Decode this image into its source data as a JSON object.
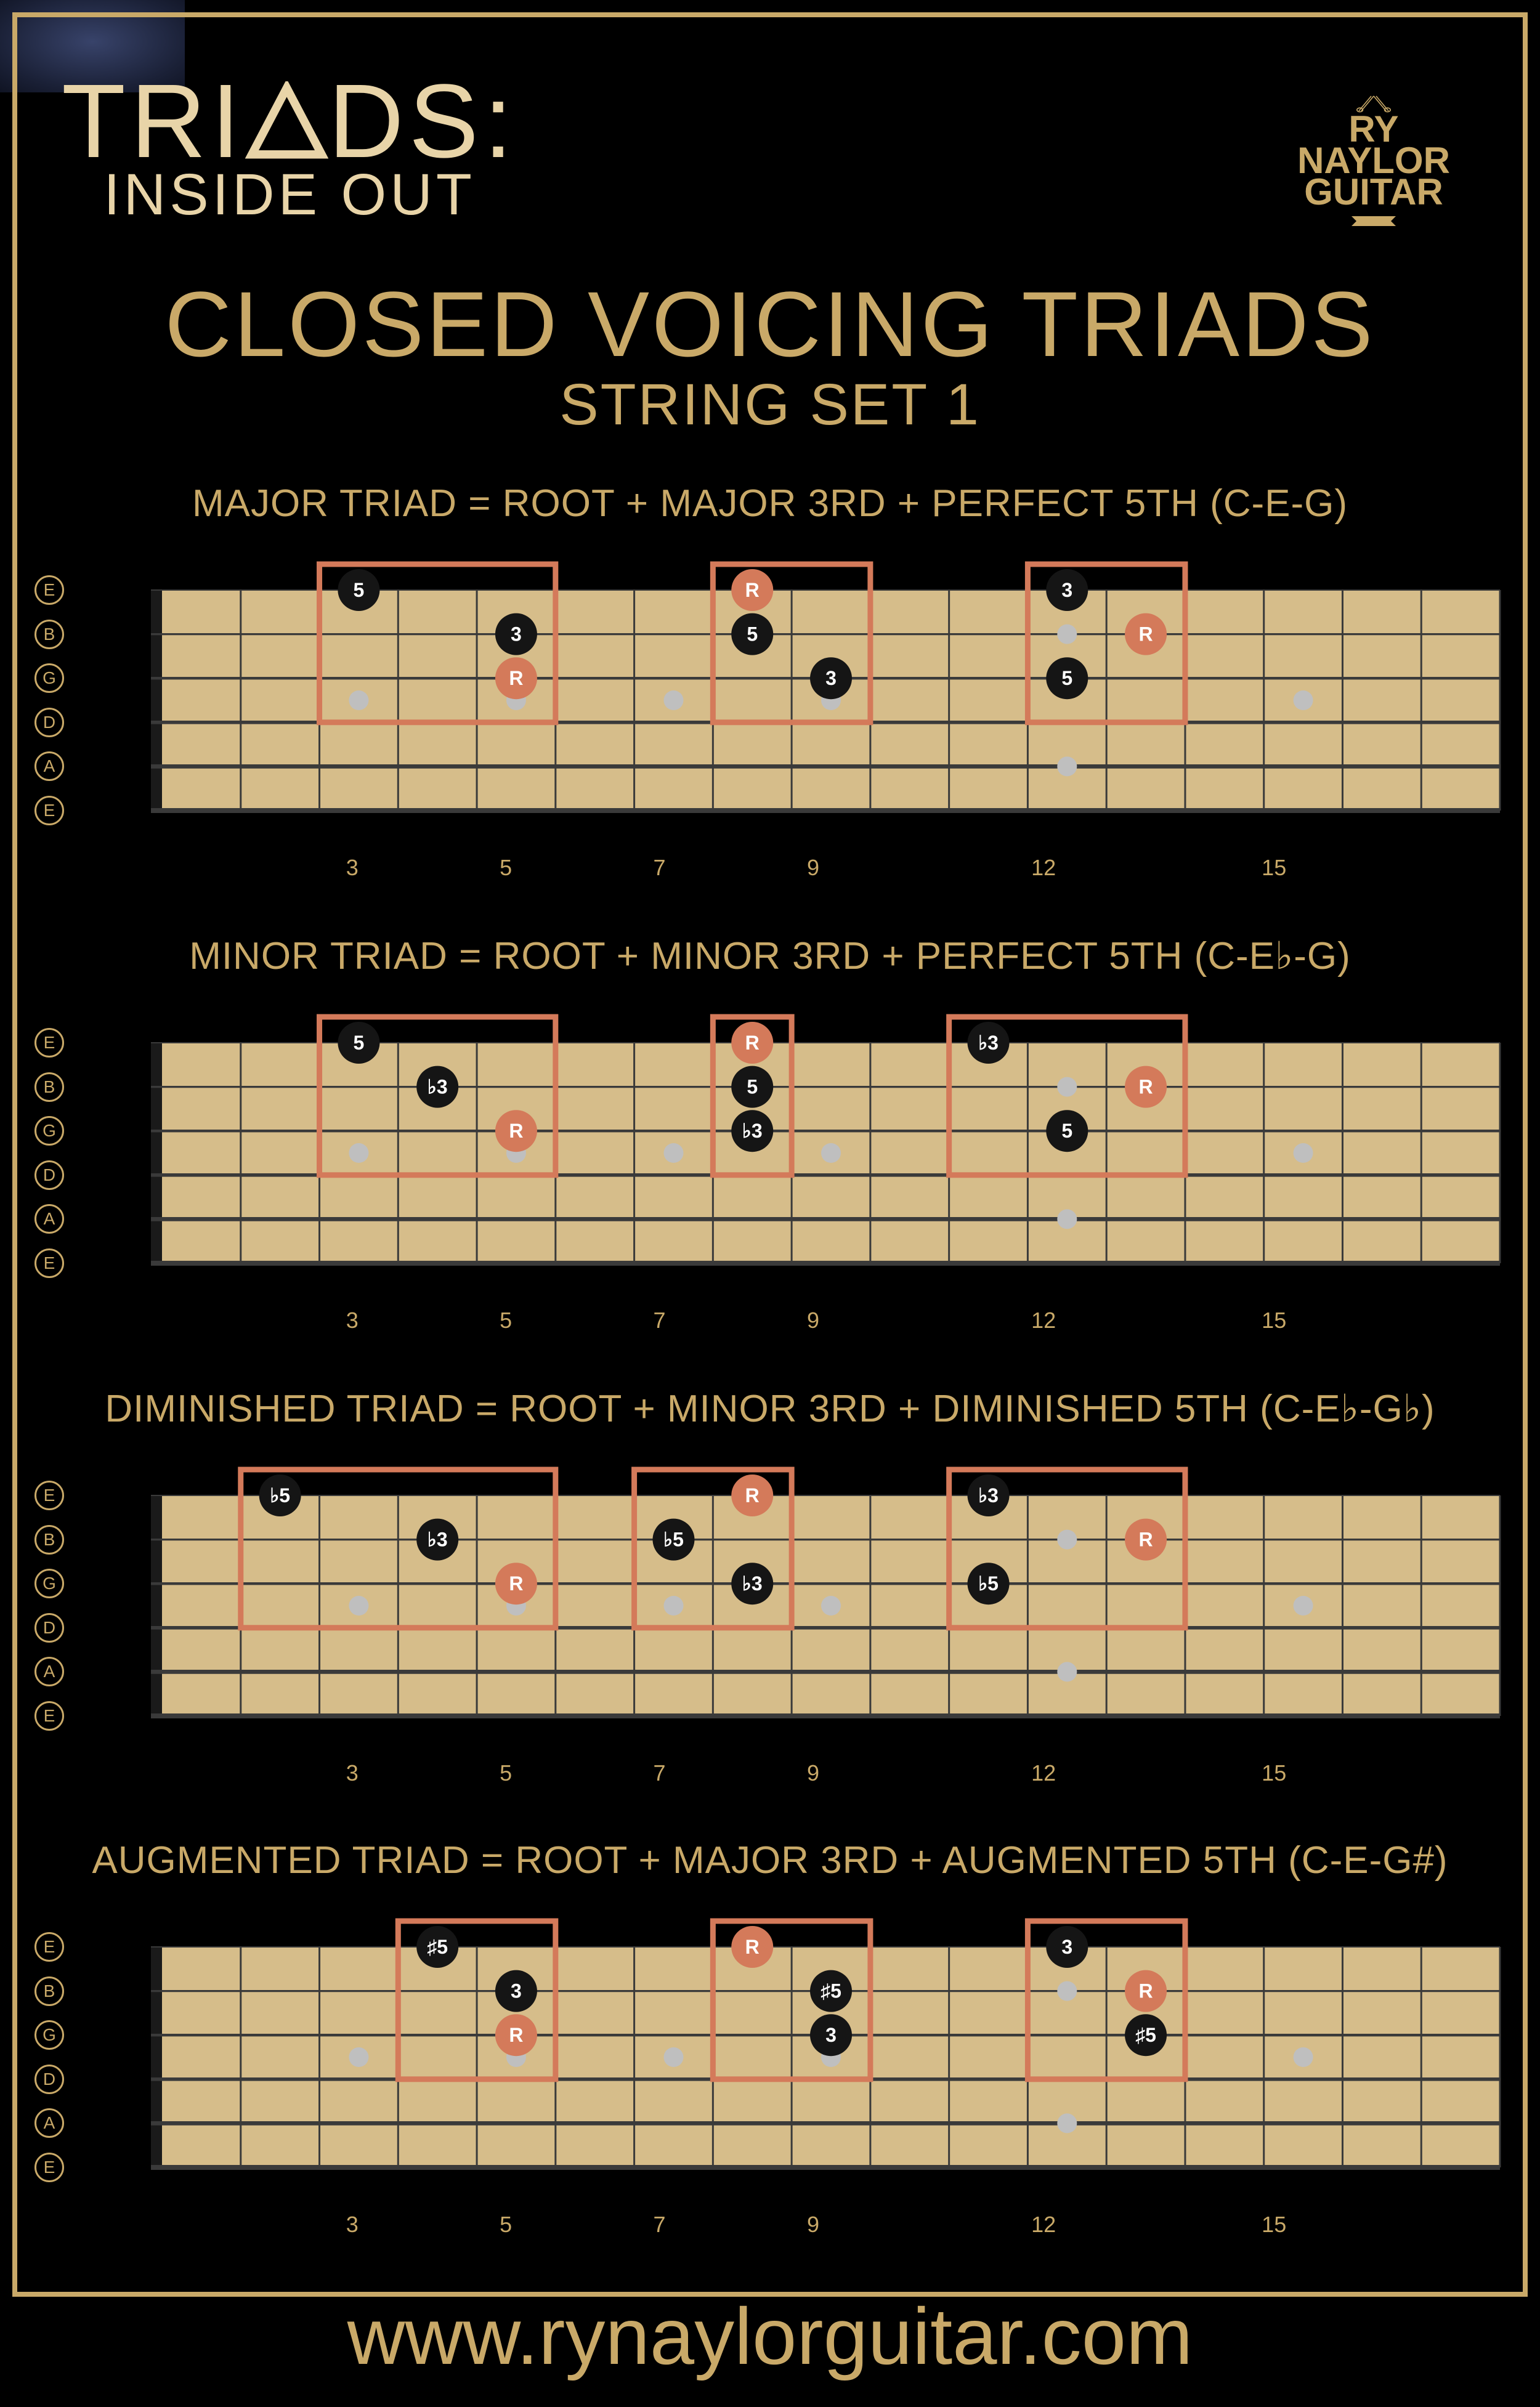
{
  "colors": {
    "frame": "#c9a968",
    "bg_inner": "#38436a",
    "bg_outer": "#1a2036",
    "bg_edge": "#0f1322",
    "text_gold": "#c9a968",
    "text_cream": "#e8d4a8",
    "fb_board": "#d6bd8a",
    "fb_line": "#3a3a3a",
    "fb_nut": "#1a1a1a",
    "dot_black": "#151515",
    "dot_root": "#d47a5a",
    "dot_text": "#ffffff",
    "inlay": "#bfbfbf",
    "box_stroke": "#d47a5a"
  },
  "brand": {
    "top_pre": "TRI",
    "top_post": "DS:",
    "bottom": "INSIDE OUT"
  },
  "logo": {
    "line1": "RY",
    "line2": "NAYLOR",
    "line3": "GUITAR"
  },
  "title": "CLOSED VOICING TRIADS",
  "subtitle": "STRING SET 1",
  "url": "www.rynaylorguitar.com",
  "strings": [
    "E",
    "B",
    "G",
    "D",
    "A",
    "E"
  ],
  "fretboard": {
    "num_frets": 17,
    "num_strings": 6,
    "board_width": 2190,
    "board_height": 358,
    "nut_width": 18,
    "fret_labels": [
      3,
      5,
      7,
      9,
      12,
      15
    ],
    "single_inlays": [
      3,
      5,
      7,
      9,
      15
    ],
    "double_inlay": 12,
    "dot_radius": 34,
    "box_stroke_w": 9
  },
  "sections": [
    {
      "label": "MAJOR TRIAD = ROOT + MAJOR 3RD + PERFECT 5TH (C-E-G)",
      "boxes": [
        {
          "f1": 3,
          "f2": 5
        },
        {
          "f1": 8,
          "f2": 9
        },
        {
          "f1": 12,
          "f2": 13
        }
      ],
      "dots": [
        {
          "s": 1,
          "f": 3,
          "t": "5",
          "root": false
        },
        {
          "s": 2,
          "f": 5,
          "t": "3",
          "root": false
        },
        {
          "s": 3,
          "f": 5,
          "t": "R",
          "root": true
        },
        {
          "s": 1,
          "f": 8,
          "t": "R",
          "root": true
        },
        {
          "s": 2,
          "f": 8,
          "t": "5",
          "root": false
        },
        {
          "s": 3,
          "f": 9,
          "t": "3",
          "root": false
        },
        {
          "s": 1,
          "f": 12,
          "t": "3",
          "root": false
        },
        {
          "s": 2,
          "f": 13,
          "t": "R",
          "root": true
        },
        {
          "s": 3,
          "f": 12,
          "t": "5",
          "root": false
        }
      ]
    },
    {
      "label": "MINOR TRIAD = ROOT + MINOR 3RD + PERFECT 5TH (C-E♭-G)",
      "boxes": [
        {
          "f1": 3,
          "f2": 5
        },
        {
          "f1": 8,
          "f2": 8
        },
        {
          "f1": 11,
          "f2": 13
        }
      ],
      "dots": [
        {
          "s": 1,
          "f": 3,
          "t": "5",
          "root": false
        },
        {
          "s": 2,
          "f": 4,
          "t": "♭3",
          "root": false
        },
        {
          "s": 3,
          "f": 5,
          "t": "R",
          "root": true
        },
        {
          "s": 1,
          "f": 8,
          "t": "R",
          "root": true
        },
        {
          "s": 2,
          "f": 8,
          "t": "5",
          "root": false
        },
        {
          "s": 3,
          "f": 8,
          "t": "♭3",
          "root": false
        },
        {
          "s": 1,
          "f": 11,
          "t": "♭3",
          "root": false
        },
        {
          "s": 2,
          "f": 13,
          "t": "R",
          "root": true
        },
        {
          "s": 3,
          "f": 12,
          "t": "5",
          "root": false
        }
      ]
    },
    {
      "label": "DIMINISHED TRIAD = ROOT + MINOR 3RD + DIMINISHED 5TH (C-E♭-G♭)",
      "boxes": [
        {
          "f1": 2,
          "f2": 5
        },
        {
          "f1": 7,
          "f2": 8
        },
        {
          "f1": 11,
          "f2": 13
        }
      ],
      "dots": [
        {
          "s": 1,
          "f": 2,
          "t": "♭5",
          "root": false
        },
        {
          "s": 2,
          "f": 4,
          "t": "♭3",
          "root": false
        },
        {
          "s": 3,
          "f": 5,
          "t": "R",
          "root": true
        },
        {
          "s": 1,
          "f": 8,
          "t": "R",
          "root": true
        },
        {
          "s": 2,
          "f": 7,
          "t": "♭5",
          "root": false
        },
        {
          "s": 3,
          "f": 8,
          "t": "♭3",
          "root": false
        },
        {
          "s": 1,
          "f": 11,
          "t": "♭3",
          "root": false
        },
        {
          "s": 2,
          "f": 13,
          "t": "R",
          "root": true
        },
        {
          "s": 3,
          "f": 11,
          "t": "♭5",
          "root": false
        }
      ]
    },
    {
      "label": "AUGMENTED TRIAD = ROOT + MAJOR 3RD + AUGMENTED 5TH (C-E-G#)",
      "boxes": [
        {
          "f1": 4,
          "f2": 5
        },
        {
          "f1": 8,
          "f2": 9
        },
        {
          "f1": 12,
          "f2": 13
        }
      ],
      "dots": [
        {
          "s": 1,
          "f": 4,
          "t": "♯5",
          "root": false
        },
        {
          "s": 2,
          "f": 5,
          "t": "3",
          "root": false
        },
        {
          "s": 3,
          "f": 5,
          "t": "R",
          "root": true
        },
        {
          "s": 1,
          "f": 8,
          "t": "R",
          "root": true
        },
        {
          "s": 2,
          "f": 9,
          "t": "♯5",
          "root": false
        },
        {
          "s": 3,
          "f": 9,
          "t": "3",
          "root": false
        },
        {
          "s": 1,
          "f": 12,
          "t": "3",
          "root": false
        },
        {
          "s": 2,
          "f": 13,
          "t": "R",
          "root": true
        },
        {
          "s": 3,
          "f": 13,
          "t": "♯5",
          "root": false
        }
      ]
    }
  ]
}
